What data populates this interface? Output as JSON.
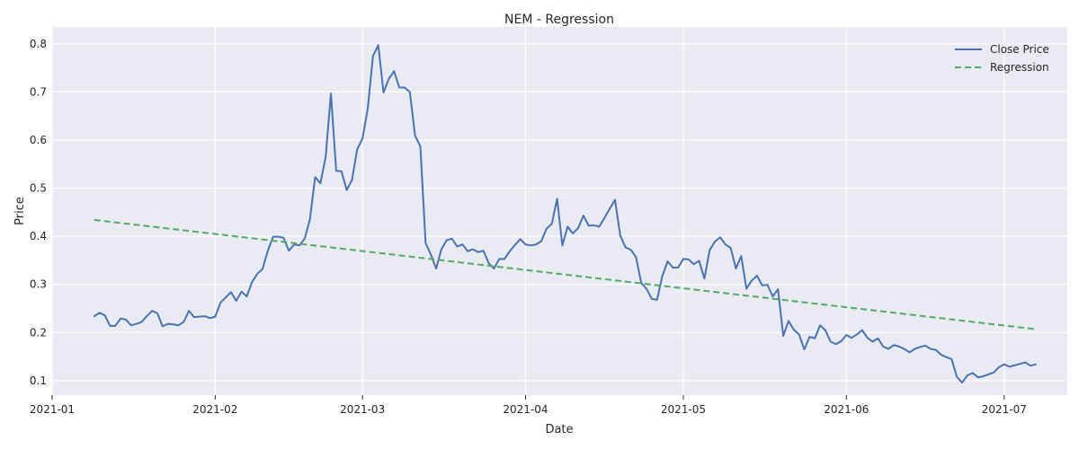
{
  "chart_data": {
    "type": "line",
    "title": "NEM - Regression",
    "xlabel": "Date",
    "ylabel": "Price",
    "xlim": [
      "2021-01-01",
      "2021-07-13"
    ],
    "ylim": [
      0.07,
      0.835
    ],
    "xticks": [
      "2021-01",
      "2021-02",
      "2021-03",
      "2021-04",
      "2021-05",
      "2021-06",
      "2021-07"
    ],
    "yticks": [
      0.1,
      0.2,
      0.3,
      0.4,
      0.5,
      0.6,
      0.7,
      0.8
    ],
    "yticklabels": [
      "0.1",
      "0.2",
      "0.3",
      "0.4",
      "0.5",
      "0.6",
      "0.7",
      "0.8"
    ],
    "grid": true,
    "legend_position": "top-right",
    "background": "#eaeaf2",
    "series": [
      {
        "name": "Close Price",
        "style": "solid",
        "color": "#4c72b0",
        "points": [
          [
            "2021-01-09",
            0.234
          ],
          [
            "2021-01-10",
            0.241
          ],
          [
            "2021-01-11",
            0.236
          ],
          [
            "2021-01-12",
            0.214
          ],
          [
            "2021-01-13",
            0.214
          ],
          [
            "2021-01-14",
            0.229
          ],
          [
            "2021-01-15",
            0.227
          ],
          [
            "2021-01-16",
            0.215
          ],
          [
            "2021-01-17",
            0.218
          ],
          [
            "2021-01-18",
            0.222
          ],
          [
            "2021-01-19",
            0.234
          ],
          [
            "2021-01-20",
            0.245
          ],
          [
            "2021-01-21",
            0.24
          ],
          [
            "2021-01-22",
            0.213
          ],
          [
            "2021-01-23",
            0.218
          ],
          [
            "2021-01-24",
            0.217
          ],
          [
            "2021-01-25",
            0.215
          ],
          [
            "2021-01-26",
            0.222
          ],
          [
            "2021-01-27",
            0.245
          ],
          [
            "2021-01-28",
            0.232
          ],
          [
            "2021-01-29",
            0.233
          ],
          [
            "2021-01-30",
            0.234
          ],
          [
            "2021-01-31",
            0.23
          ],
          [
            "2021-02-01",
            0.233
          ],
          [
            "2021-02-02",
            0.262
          ],
          [
            "2021-02-03",
            0.273
          ],
          [
            "2021-02-04",
            0.284
          ],
          [
            "2021-02-05",
            0.266
          ],
          [
            "2021-02-06",
            0.285
          ],
          [
            "2021-02-07",
            0.275
          ],
          [
            "2021-02-08",
            0.305
          ],
          [
            "2021-02-09",
            0.322
          ],
          [
            "2021-02-10",
            0.332
          ],
          [
            "2021-02-11",
            0.37
          ],
          [
            "2021-02-12",
            0.399
          ],
          [
            "2021-02-13",
            0.399
          ],
          [
            "2021-02-14",
            0.397
          ],
          [
            "2021-02-15",
            0.37
          ],
          [
            "2021-02-16",
            0.383
          ],
          [
            "2021-02-17",
            0.381
          ],
          [
            "2021-02-18",
            0.395
          ],
          [
            "2021-02-19",
            0.435
          ],
          [
            "2021-02-20",
            0.523
          ],
          [
            "2021-02-21",
            0.51
          ],
          [
            "2021-02-22",
            0.565
          ],
          [
            "2021-02-23",
            0.697
          ],
          [
            "2021-02-24",
            0.536
          ],
          [
            "2021-02-25",
            0.535
          ],
          [
            "2021-02-26",
            0.496
          ],
          [
            "2021-02-27",
            0.517
          ],
          [
            "2021-02-28",
            0.581
          ],
          [
            "2021-03-01",
            0.603
          ],
          [
            "2021-03-02",
            0.665
          ],
          [
            "2021-03-03",
            0.775
          ],
          [
            "2021-03-04",
            0.797
          ],
          [
            "2021-03-05",
            0.699
          ],
          [
            "2021-03-06",
            0.727
          ],
          [
            "2021-03-07",
            0.743
          ],
          [
            "2021-03-08",
            0.709
          ],
          [
            "2021-03-09",
            0.709
          ],
          [
            "2021-03-10",
            0.7
          ],
          [
            "2021-03-11",
            0.609
          ],
          [
            "2021-03-12",
            0.587
          ],
          [
            "2021-03-13",
            0.386
          ],
          [
            "2021-03-14",
            0.362
          ],
          [
            "2021-03-15",
            0.333
          ],
          [
            "2021-03-16",
            0.373
          ],
          [
            "2021-03-17",
            0.392
          ],
          [
            "2021-03-18",
            0.395
          ],
          [
            "2021-03-19",
            0.379
          ],
          [
            "2021-03-20",
            0.383
          ],
          [
            "2021-03-21",
            0.369
          ],
          [
            "2021-03-22",
            0.373
          ],
          [
            "2021-03-23",
            0.367
          ],
          [
            "2021-03-24",
            0.37
          ],
          [
            "2021-03-25",
            0.344
          ],
          [
            "2021-03-26",
            0.333
          ],
          [
            "2021-03-27",
            0.353
          ],
          [
            "2021-03-28",
            0.353
          ],
          [
            "2021-03-29",
            0.369
          ],
          [
            "2021-03-30",
            0.382
          ],
          [
            "2021-03-31",
            0.394
          ],
          [
            "2021-04-01",
            0.383
          ],
          [
            "2021-04-02",
            0.381
          ],
          [
            "2021-04-03",
            0.383
          ],
          [
            "2021-04-04",
            0.39
          ],
          [
            "2021-04-05",
            0.416
          ],
          [
            "2021-04-06",
            0.426
          ],
          [
            "2021-04-07",
            0.478
          ],
          [
            "2021-04-08",
            0.381
          ],
          [
            "2021-04-09",
            0.42
          ],
          [
            "2021-04-10",
            0.406
          ],
          [
            "2021-04-11",
            0.417
          ],
          [
            "2021-04-12",
            0.443
          ],
          [
            "2021-04-13",
            0.422
          ],
          [
            "2021-04-14",
            0.423
          ],
          [
            "2021-04-15",
            0.42
          ],
          [
            "2021-04-16",
            0.438
          ],
          [
            "2021-04-17",
            0.457
          ],
          [
            "2021-04-18",
            0.476
          ],
          [
            "2021-04-19",
            0.402
          ],
          [
            "2021-04-20",
            0.377
          ],
          [
            "2021-04-21",
            0.372
          ],
          [
            "2021-04-22",
            0.357
          ],
          [
            "2021-04-23",
            0.303
          ],
          [
            "2021-04-24",
            0.291
          ],
          [
            "2021-04-25",
            0.27
          ],
          [
            "2021-04-26",
            0.268
          ],
          [
            "2021-04-27",
            0.317
          ],
          [
            "2021-04-28",
            0.348
          ],
          [
            "2021-04-29",
            0.335
          ],
          [
            "2021-04-30",
            0.335
          ],
          [
            "2021-05-01",
            0.353
          ],
          [
            "2021-05-02",
            0.352
          ],
          [
            "2021-05-03",
            0.342
          ],
          [
            "2021-05-04",
            0.349
          ],
          [
            "2021-05-05",
            0.312
          ],
          [
            "2021-05-06",
            0.371
          ],
          [
            "2021-05-07",
            0.389
          ],
          [
            "2021-05-08",
            0.398
          ],
          [
            "2021-05-09",
            0.383
          ],
          [
            "2021-05-10",
            0.376
          ],
          [
            "2021-05-11",
            0.333
          ],
          [
            "2021-05-12",
            0.359
          ],
          [
            "2021-05-13",
            0.291
          ],
          [
            "2021-05-14",
            0.308
          ],
          [
            "2021-05-15",
            0.318
          ],
          [
            "2021-05-16",
            0.298
          ],
          [
            "2021-05-17",
            0.299
          ],
          [
            "2021-05-18",
            0.275
          ],
          [
            "2021-05-19",
            0.29
          ],
          [
            "2021-05-20",
            0.193
          ],
          [
            "2021-05-21",
            0.224
          ],
          [
            "2021-05-22",
            0.206
          ],
          [
            "2021-05-23",
            0.196
          ],
          [
            "2021-05-24",
            0.165
          ],
          [
            "2021-05-25",
            0.191
          ],
          [
            "2021-05-26",
            0.188
          ],
          [
            "2021-05-27",
            0.215
          ],
          [
            "2021-05-28",
            0.205
          ],
          [
            "2021-05-29",
            0.181
          ],
          [
            "2021-05-30",
            0.176
          ],
          [
            "2021-05-31",
            0.182
          ],
          [
            "2021-06-01",
            0.195
          ],
          [
            "2021-06-02",
            0.189
          ],
          [
            "2021-06-03",
            0.196
          ],
          [
            "2021-06-04",
            0.205
          ],
          [
            "2021-06-05",
            0.189
          ],
          [
            "2021-06-06",
            0.181
          ],
          [
            "2021-06-07",
            0.188
          ],
          [
            "2021-06-08",
            0.171
          ],
          [
            "2021-06-09",
            0.166
          ],
          [
            "2021-06-10",
            0.174
          ],
          [
            "2021-06-11",
            0.171
          ],
          [
            "2021-06-12",
            0.166
          ],
          [
            "2021-06-13",
            0.159
          ],
          [
            "2021-06-14",
            0.166
          ],
          [
            "2021-06-15",
            0.17
          ],
          [
            "2021-06-16",
            0.173
          ],
          [
            "2021-06-17",
            0.166
          ],
          [
            "2021-06-18",
            0.164
          ],
          [
            "2021-06-19",
            0.154
          ],
          [
            "2021-06-20",
            0.149
          ],
          [
            "2021-06-21",
            0.145
          ],
          [
            "2021-06-22",
            0.108
          ],
          [
            "2021-06-23",
            0.096
          ],
          [
            "2021-06-24",
            0.111
          ],
          [
            "2021-06-25",
            0.116
          ],
          [
            "2021-06-26",
            0.107
          ],
          [
            "2021-06-27",
            0.109
          ],
          [
            "2021-06-28",
            0.113
          ],
          [
            "2021-06-29",
            0.117
          ],
          [
            "2021-06-30",
            0.128
          ],
          [
            "2021-07-01",
            0.134
          ],
          [
            "2021-07-02",
            0.129
          ],
          [
            "2021-07-03",
            0.132
          ],
          [
            "2021-07-04",
            0.135
          ],
          [
            "2021-07-05",
            0.138
          ],
          [
            "2021-07-06",
            0.131
          ],
          [
            "2021-07-07",
            0.134
          ]
        ]
      },
      {
        "name": "Regression",
        "style": "dashed",
        "color": "#55a868",
        "points": [
          [
            "2021-01-09",
            0.434
          ],
          [
            "2021-07-07",
            0.207
          ]
        ]
      }
    ]
  }
}
